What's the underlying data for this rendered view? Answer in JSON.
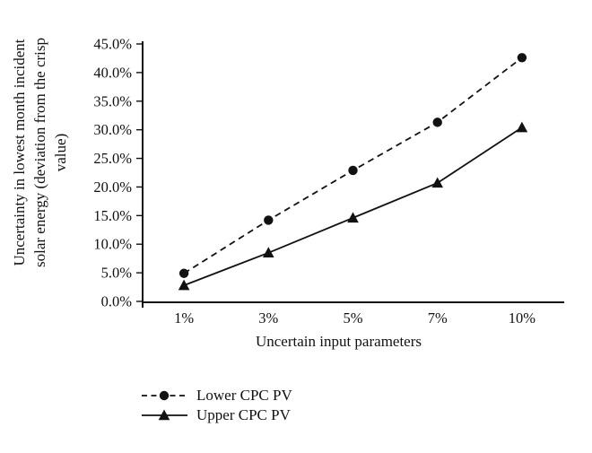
{
  "figure": {
    "background": "#ffffff",
    "ink_color": "#111111"
  },
  "chart_data": {
    "type": "line",
    "title": "",
    "xlabel": "Uncertain input parameters",
    "ylabel": "Uncertainty in lowest month incident solar energy (deviation from the crisp value)",
    "ylabel_lines": [
      "Uncertainty in lowest month incident",
      "solar energy (deviation from the crisp",
      "value)"
    ],
    "categories": [
      "1%",
      "3%",
      "5%",
      "7%",
      "10%"
    ],
    "series": [
      {
        "name": "Lower CPC PV",
        "values": [
          4.9,
          14.2,
          22.9,
          31.3,
          42.6
        ],
        "line_style": "dashed",
        "marker": "circle"
      },
      {
        "name": "Upper CPC PV",
        "values": [
          2.8,
          8.5,
          14.6,
          20.7,
          30.4
        ],
        "line_style": "solid",
        "marker": "triangle"
      }
    ],
    "ylim": [
      0,
      45
    ],
    "ytick_step": 5,
    "ytick_labels": [
      "0.0%",
      "5.0%",
      "10.0%",
      "15.0%",
      "20.0%",
      "25.0%",
      "30.0%",
      "35.0%",
      "40.0%",
      "45.0%"
    ],
    "grid": false,
    "legend_position": "bottom-left"
  }
}
